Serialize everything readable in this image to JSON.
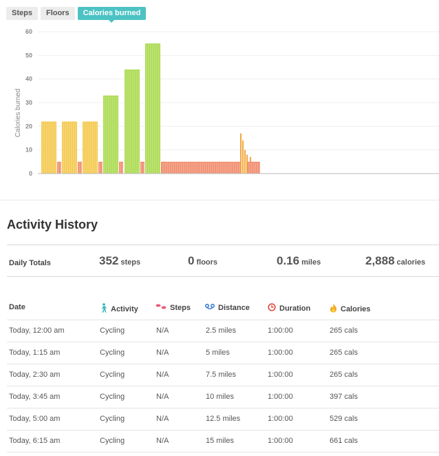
{
  "tabs": [
    {
      "label": "Steps",
      "active": false
    },
    {
      "label": "Floors",
      "active": false
    },
    {
      "label": "Calories burned",
      "active": true
    }
  ],
  "colors": {
    "accent": "#4cc2c4",
    "bar_yellow": "#f4c84a",
    "bar_green": "#a8d94b",
    "bar_red": "#f08a6a"
  },
  "chart_data": {
    "type": "bar",
    "title": "",
    "xlabel": "",
    "ylabel": "Calories burned",
    "ylim": [
      0,
      60
    ],
    "yticks": [
      "0",
      "10",
      "20",
      "30",
      "40",
      "50",
      "60"
    ],
    "grid": true,
    "series": [
      {
        "color": "yellow",
        "values": [
          22,
          22,
          22
        ]
      },
      {
        "color": "green",
        "values": [
          33,
          44,
          55
        ]
      },
      {
        "color": "red",
        "values": [
          5,
          5,
          5,
          5,
          5,
          5
        ]
      },
      {
        "color": "orange",
        "values": [
          17,
          14,
          10,
          8,
          7
        ]
      }
    ]
  },
  "section_title": "Activity History",
  "daily_totals": {
    "label": "Daily Totals",
    "items": [
      {
        "value": "352",
        "unit": "steps"
      },
      {
        "value": "0",
        "unit": "floors"
      },
      {
        "value": "0.16",
        "unit": "miles"
      },
      {
        "value": "2,888",
        "unit": "calories"
      }
    ]
  },
  "table": {
    "headers": {
      "date": "Date",
      "activity": "Activity",
      "steps": "Steps",
      "distance": "Distance",
      "duration": "Duration",
      "calories": "Calories"
    },
    "header_icons": {
      "activity": "walking-person-icon",
      "steps": "footprints-icon",
      "distance": "route-icon",
      "duration": "clock-icon",
      "calories": "flame-icon"
    },
    "rows": [
      {
        "date": "Today, 12:00 am",
        "activity": "Cycling",
        "steps": "N/A",
        "distance": "2.5 miles",
        "duration": "1:00:00",
        "calories": "265 cals"
      },
      {
        "date": "Today, 1:15 am",
        "activity": "Cycling",
        "steps": "N/A",
        "distance": "5 miles",
        "duration": "1:00:00",
        "calories": "265 cals"
      },
      {
        "date": "Today, 2:30 am",
        "activity": "Cycling",
        "steps": "N/A",
        "distance": "7.5 miles",
        "duration": "1:00:00",
        "calories": "265 cals"
      },
      {
        "date": "Today, 3:45 am",
        "activity": "Cycling",
        "steps": "N/A",
        "distance": "10 miles",
        "duration": "1:00:00",
        "calories": "397 cals"
      },
      {
        "date": "Today, 5:00 am",
        "activity": "Cycling",
        "steps": "N/A",
        "distance": "12.5 miles",
        "duration": "1:00:00",
        "calories": "529 cals"
      },
      {
        "date": "Today, 6:15 am",
        "activity": "Cycling",
        "steps": "N/A",
        "distance": "15 miles",
        "duration": "1:00:00",
        "calories": "661 cals"
      }
    ]
  }
}
